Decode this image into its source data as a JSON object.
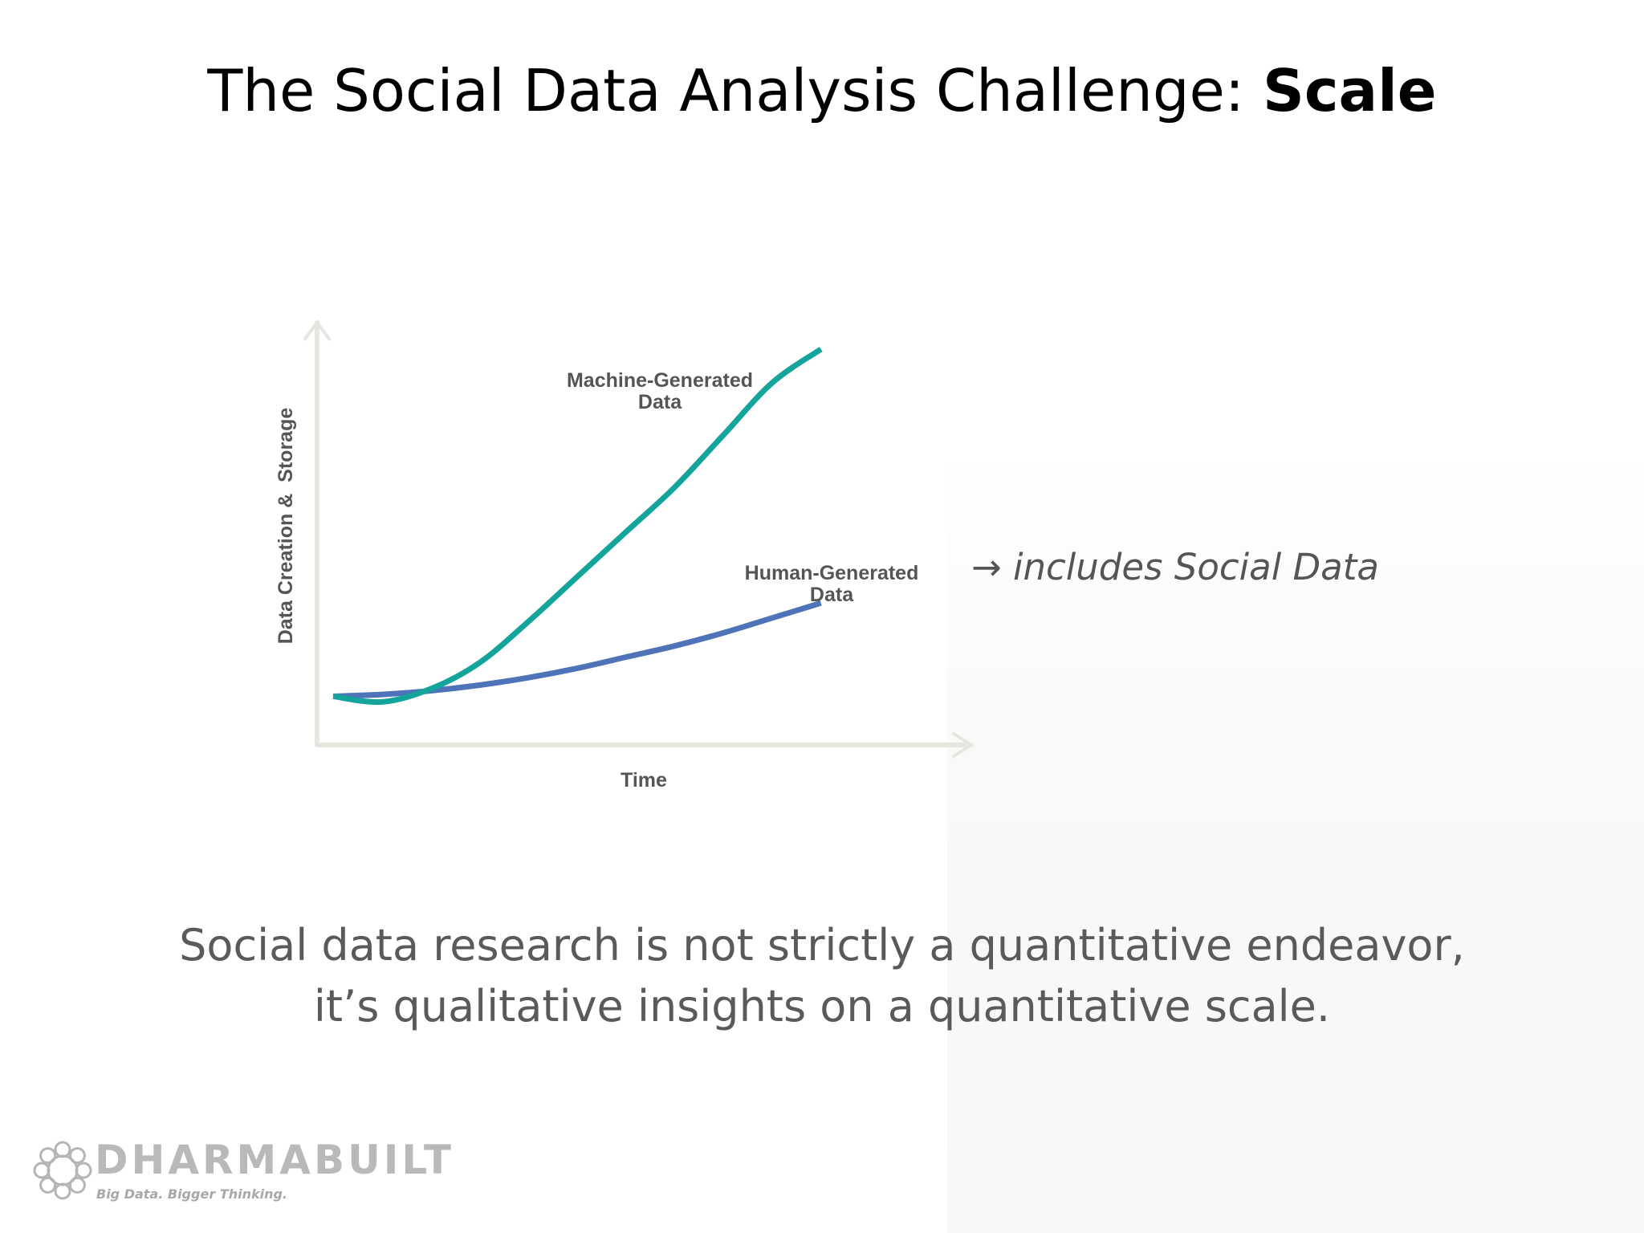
{
  "slide": {
    "title_regular": "The Social Data Analysis Challenge: ",
    "title_bold": "Scale",
    "annotation": "→ includes Social Data",
    "caption_line1": "Social data research is not strictly a quantitative endeavor,",
    "caption_line2": "it’s qualitative insights on a quantitative scale."
  },
  "logo": {
    "wordmark": "DHARMABUILT",
    "tagline": "Big Data. Bigger Thinking."
  },
  "chart_data": {
    "type": "line",
    "title": "",
    "xlabel": "Time",
    "ylabel": "Data Creation &  Storage",
    "grid": false,
    "legend": "none",
    "x": [
      0,
      1,
      2,
      3,
      4,
      5,
      6,
      7,
      8,
      9,
      10
    ],
    "xlim": [
      0,
      13
    ],
    "ylim": [
      0,
      10
    ],
    "series": [
      {
        "name": "Machine-Generated Data",
        "color": "#13a49c",
        "values": [
          0.7,
          0.55,
          0.9,
          1.6,
          2.7,
          3.9,
          5.1,
          6.3,
          7.7,
          9.1,
          10.0
        ]
      },
      {
        "name": "Human-Generated Data",
        "color": "#4f73b8",
        "values": [
          0.7,
          0.75,
          0.85,
          1.0,
          1.2,
          1.45,
          1.75,
          2.05,
          2.4,
          2.8,
          3.2
        ]
      }
    ],
    "axis_color": "#e6e6e0"
  }
}
